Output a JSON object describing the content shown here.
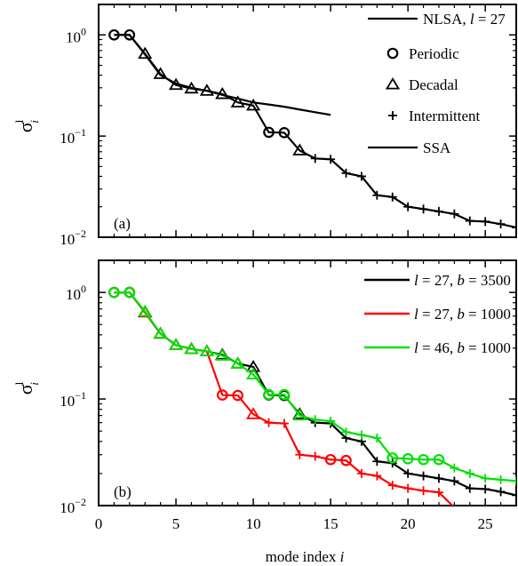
{
  "chart_data": [
    {
      "type": "line",
      "panel_label": "(a)",
      "ylabel": "σ",
      "ylabel_sup": "l",
      "ylabel_sub": "i",
      "yscale": "log",
      "xlim": [
        0,
        27
      ],
      "ylim": [
        0.01,
        2.0
      ],
      "yticks": [
        {
          "value": 1,
          "base": "10",
          "exp": "0"
        },
        {
          "value": 0.1,
          "base": "10",
          "exp": "−1"
        },
        {
          "value": 0.01,
          "base": "10",
          "exp": "−2"
        }
      ],
      "legend": {
        "placement": "top-right",
        "entries": [
          {
            "kind": "line",
            "name": "NLSA, ",
            "var": "l",
            "rest": " = 27"
          },
          {
            "kind": "circle",
            "name": "Periodic"
          },
          {
            "kind": "triangle",
            "name": "Decadal"
          },
          {
            "kind": "plus",
            "name": "Intermittent"
          },
          {
            "kind": "line",
            "name": "SSA"
          }
        ]
      },
      "series": [
        {
          "name": "NLSA, l = 27",
          "color": "#000000",
          "points": [
            {
              "x": 1,
              "y": 1.0,
              "m": "o"
            },
            {
              "x": 2,
              "y": 1.0,
              "m": "o"
            },
            {
              "x": 3,
              "y": 0.65,
              "m": "t"
            },
            {
              "x": 4,
              "y": 0.41,
              "m": "t"
            },
            {
              "x": 5,
              "y": 0.32,
              "m": "t"
            },
            {
              "x": 6,
              "y": 0.295,
              "m": "t"
            },
            {
              "x": 7,
              "y": 0.28,
              "m": "t"
            },
            {
              "x": 8,
              "y": 0.26,
              "m": "t"
            },
            {
              "x": 9,
              "y": 0.215,
              "m": "t"
            },
            {
              "x": 10,
              "y": 0.2,
              "m": "t"
            },
            {
              "x": 11,
              "y": 0.109,
              "m": "o"
            },
            {
              "x": 12,
              "y": 0.108,
              "m": "o"
            },
            {
              "x": 13,
              "y": 0.072,
              "m": "t"
            },
            {
              "x": 14,
              "y": 0.06,
              "m": "p"
            },
            {
              "x": 15,
              "y": 0.059,
              "m": "p"
            },
            {
              "x": 16,
              "y": 0.043,
              "m": "p"
            },
            {
              "x": 17,
              "y": 0.04,
              "m": "p"
            },
            {
              "x": 18,
              "y": 0.026,
              "m": "p"
            },
            {
              "x": 19,
              "y": 0.025,
              "m": "p"
            },
            {
              "x": 20,
              "y": 0.02,
              "m": "p"
            },
            {
              "x": 21,
              "y": 0.019,
              "m": "p"
            },
            {
              "x": 22,
              "y": 0.018,
              "m": "p"
            },
            {
              "x": 23,
              "y": 0.017,
              "m": "p"
            },
            {
              "x": 24,
              "y": 0.0145,
              "m": "p"
            },
            {
              "x": 25,
              "y": 0.0143,
              "m": "p"
            },
            {
              "x": 26,
              "y": 0.0135,
              "m": "p"
            },
            {
              "x": 27,
              "y": 0.0125,
              "m": "p"
            }
          ]
        },
        {
          "name": "SSA",
          "color": "#000000",
          "points": [
            {
              "x": 1,
              "y": 1.0
            },
            {
              "x": 2,
              "y": 1.0
            },
            {
              "x": 3,
              "y": 0.64
            },
            {
              "x": 4,
              "y": 0.4
            },
            {
              "x": 5,
              "y": 0.33
            },
            {
              "x": 6,
              "y": 0.3
            },
            {
              "x": 7,
              "y": 0.28
            },
            {
              "x": 8,
              "y": 0.255
            },
            {
              "x": 9,
              "y": 0.235
            },
            {
              "x": 10,
              "y": 0.215
            },
            {
              "x": 11,
              "y": 0.205
            },
            {
              "x": 12,
              "y": 0.195
            },
            {
              "x": 13,
              "y": 0.183
            },
            {
              "x": 14,
              "y": 0.172
            },
            {
              "x": 15,
              "y": 0.162
            }
          ]
        }
      ]
    },
    {
      "type": "line",
      "panel_label": "(b)",
      "ylabel": "σ",
      "ylabel_sup": "l",
      "ylabel_sub": "i",
      "yscale": "log",
      "xlim": [
        0,
        27
      ],
      "ylim": [
        0.01,
        2.0
      ],
      "xlabel": "mode index ",
      "xlabel_var": "i",
      "xticks": [
        "0",
        "5",
        "10",
        "15",
        "20",
        "25"
      ],
      "yticks": [
        {
          "value": 1,
          "base": "10",
          "exp": "0"
        },
        {
          "value": 0.1,
          "base": "10",
          "exp": "−1"
        },
        {
          "value": 0.01,
          "base": "10",
          "exp": "−2"
        }
      ],
      "legend": {
        "placement": "top-right",
        "entries": [
          {
            "color": "#000000",
            "l": "l",
            "lval": " = 27, ",
            "b": "b",
            "bval": " = 3500"
          },
          {
            "color": "#ff0000",
            "l": "l",
            "lval": " = 27, ",
            "b": "b",
            "bval": " = 1000"
          },
          {
            "color": "#00e000",
            "l": "l",
            "lval": " = 46, ",
            "b": "b",
            "bval": " = 1000"
          }
        ]
      },
      "series": [
        {
          "name": "l = 27, b = 3500",
          "color": "#000000",
          "points": [
            {
              "x": 1,
              "y": 1.0,
              "m": "o"
            },
            {
              "x": 2,
              "y": 1.0,
              "m": "o"
            },
            {
              "x": 3,
              "y": 0.65,
              "m": "t"
            },
            {
              "x": 4,
              "y": 0.41,
              "m": "t"
            },
            {
              "x": 5,
              "y": 0.32,
              "m": "t"
            },
            {
              "x": 6,
              "y": 0.295,
              "m": "t"
            },
            {
              "x": 7,
              "y": 0.28,
              "m": "t"
            },
            {
              "x": 8,
              "y": 0.26,
              "m": "t"
            },
            {
              "x": 9,
              "y": 0.215,
              "m": "t"
            },
            {
              "x": 10,
              "y": 0.2,
              "m": "t"
            },
            {
              "x": 11,
              "y": 0.109,
              "m": "o"
            },
            {
              "x": 12,
              "y": 0.108,
              "m": "o"
            },
            {
              "x": 13,
              "y": 0.072,
              "m": "t"
            },
            {
              "x": 14,
              "y": 0.06,
              "m": "p"
            },
            {
              "x": 15,
              "y": 0.059,
              "m": "p"
            },
            {
              "x": 16,
              "y": 0.043,
              "m": "p"
            },
            {
              "x": 17,
              "y": 0.04,
              "m": "p"
            },
            {
              "x": 18,
              "y": 0.026,
              "m": "p"
            },
            {
              "x": 19,
              "y": 0.025,
              "m": "p"
            },
            {
              "x": 20,
              "y": 0.02,
              "m": "p"
            },
            {
              "x": 21,
              "y": 0.019,
              "m": "p"
            },
            {
              "x": 22,
              "y": 0.018,
              "m": "p"
            },
            {
              "x": 23,
              "y": 0.017,
              "m": "p"
            },
            {
              "x": 24,
              "y": 0.0145,
              "m": "p"
            },
            {
              "x": 25,
              "y": 0.0143,
              "m": "p"
            },
            {
              "x": 26,
              "y": 0.0135,
              "m": "p"
            },
            {
              "x": 27,
              "y": 0.0125,
              "m": "p"
            }
          ]
        },
        {
          "name": "l = 27, b = 1000",
          "color": "#ff0000",
          "points": [
            {
              "x": 1,
              "y": 1.0,
              "m": "o"
            },
            {
              "x": 2,
              "y": 1.0,
              "m": "o"
            },
            {
              "x": 3,
              "y": 0.65,
              "m": "t"
            },
            {
              "x": 4,
              "y": 0.41,
              "m": "t"
            },
            {
              "x": 5,
              "y": 0.32,
              "m": "t"
            },
            {
              "x": 6,
              "y": 0.295,
              "m": "t"
            },
            {
              "x": 7,
              "y": 0.28,
              "m": "t"
            },
            {
              "x": 8,
              "y": 0.109,
              "m": "o"
            },
            {
              "x": 9,
              "y": 0.108,
              "m": "o"
            },
            {
              "x": 10,
              "y": 0.072,
              "m": "t"
            },
            {
              "x": 11,
              "y": 0.06,
              "m": "p"
            },
            {
              "x": 12,
              "y": 0.059,
              "m": "p"
            },
            {
              "x": 13,
              "y": 0.03,
              "m": "p"
            },
            {
              "x": 14,
              "y": 0.029,
              "m": "p"
            },
            {
              "x": 15,
              "y": 0.027,
              "m": "o"
            },
            {
              "x": 16,
              "y": 0.0265,
              "m": "o"
            },
            {
              "x": 17,
              "y": 0.02,
              "m": "p"
            },
            {
              "x": 18,
              "y": 0.019,
              "m": "p"
            },
            {
              "x": 19,
              "y": 0.0155,
              "m": "p"
            },
            {
              "x": 20,
              "y": 0.0145,
              "m": "p"
            },
            {
              "x": 21,
              "y": 0.0138,
              "m": "p"
            },
            {
              "x": 22,
              "y": 0.0133,
              "m": "p"
            },
            {
              "x": 23,
              "y": 0.0096
            }
          ]
        },
        {
          "name": "l = 46, b = 1000",
          "color": "#00e000",
          "points": [
            {
              "x": 1,
              "y": 1.0,
              "m": "o"
            },
            {
              "x": 2,
              "y": 1.0,
              "m": "o"
            },
            {
              "x": 3,
              "y": 0.66,
              "m": "t"
            },
            {
              "x": 4,
              "y": 0.41,
              "m": "t"
            },
            {
              "x": 5,
              "y": 0.32,
              "m": "t"
            },
            {
              "x": 6,
              "y": 0.295,
              "m": "t"
            },
            {
              "x": 7,
              "y": 0.28,
              "m": "t"
            },
            {
              "x": 8,
              "y": 0.255,
              "m": "t"
            },
            {
              "x": 9,
              "y": 0.215,
              "m": "t"
            },
            {
              "x": 10,
              "y": 0.17,
              "m": "t"
            },
            {
              "x": 11,
              "y": 0.11,
              "m": "o"
            },
            {
              "x": 12,
              "y": 0.11,
              "m": "o"
            },
            {
              "x": 13,
              "y": 0.07,
              "m": "t"
            },
            {
              "x": 14,
              "y": 0.064,
              "m": "p"
            },
            {
              "x": 15,
              "y": 0.062,
              "m": "p"
            },
            {
              "x": 16,
              "y": 0.049,
              "m": "p"
            },
            {
              "x": 17,
              "y": 0.046,
              "m": "p"
            },
            {
              "x": 18,
              "y": 0.043,
              "m": "p"
            },
            {
              "x": 19,
              "y": 0.028,
              "m": "o"
            },
            {
              "x": 20,
              "y": 0.0275,
              "m": "o"
            },
            {
              "x": 21,
              "y": 0.027,
              "m": "o"
            },
            {
              "x": 22,
              "y": 0.027,
              "m": "o"
            },
            {
              "x": 23,
              "y": 0.0225,
              "m": "p"
            },
            {
              "x": 24,
              "y": 0.02,
              "m": "p"
            },
            {
              "x": 25,
              "y": 0.018,
              "m": "p"
            },
            {
              "x": 26,
              "y": 0.0175,
              "m": "p"
            },
            {
              "x": 27,
              "y": 0.017,
              "m": "p"
            }
          ]
        }
      ]
    }
  ]
}
